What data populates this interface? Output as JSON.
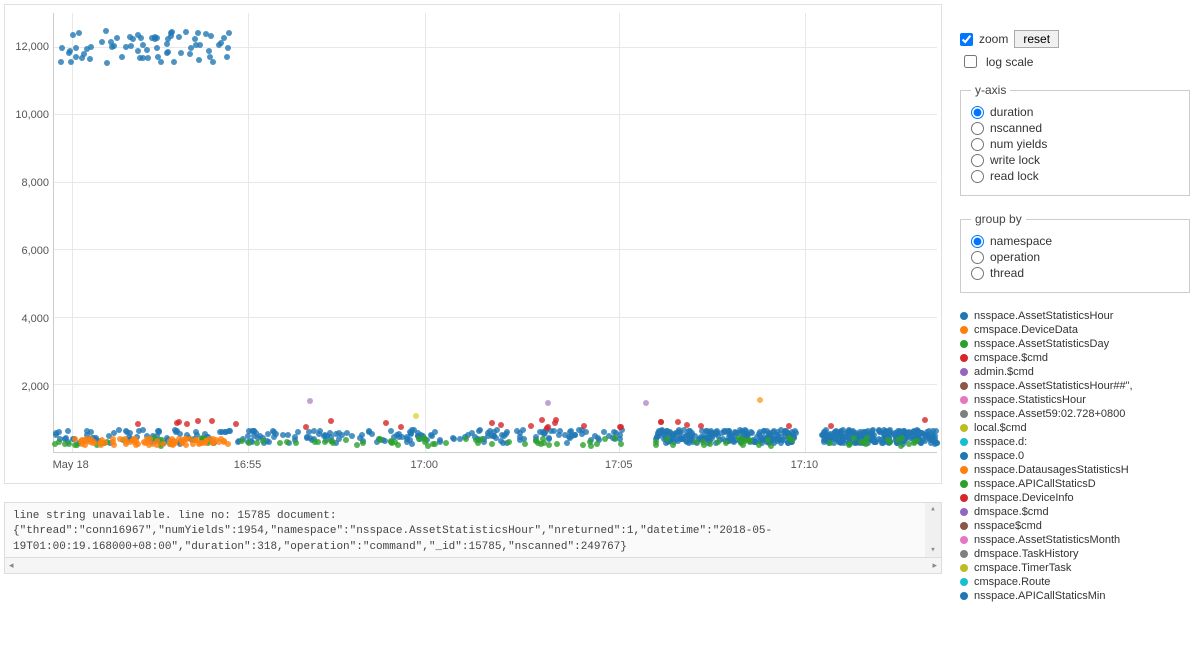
{
  "chart": {
    "type": "scatter",
    "background_color": "#ffffff",
    "grid_color": "#e8e8e8",
    "axis_color": "#cccccc",
    "ylim": [
      0,
      13000
    ],
    "ytick_step": 2000,
    "yticks": [
      2000,
      4000,
      6000,
      8000,
      10000,
      12000
    ],
    "ytick_labels": [
      "2,000",
      "4,000",
      "6,000",
      "8,000",
      "10,000",
      "12,000"
    ],
    "xticks": [
      0.02,
      0.22,
      0.42,
      0.64,
      0.85
    ],
    "xtick_labels": [
      "May 18",
      "16:55",
      "17:00",
      "17:05",
      "17:10"
    ],
    "marker_size": 6,
    "marker_opacity": 0.8,
    "clusters": {
      "high_band": {
        "color": "#1f77b4",
        "y_range": [
          11500,
          12500
        ],
        "x_range": [
          0.005,
          0.2
        ],
        "count": 70
      },
      "low_band_blue": {
        "color": "#1f77b4",
        "y_range": [
          250,
          650
        ],
        "segments": [
          [
            0.0,
            0.65
          ],
          [
            0.68,
            0.84
          ],
          [
            0.87,
            1.0
          ]
        ],
        "count": 700
      },
      "low_band_green": {
        "color": "#2ca02c",
        "y_range": [
          180,
          420
        ],
        "x_range": [
          0.0,
          1.0
        ],
        "count": 120
      },
      "low_band_orange": {
        "color": "#ff7f0e",
        "y_range": [
          200,
          400
        ],
        "x_range": [
          0.02,
          0.2
        ],
        "count": 80
      },
      "mid_red": {
        "color": "#d62728",
        "y_range": [
          700,
          960
        ],
        "x_range": [
          0.0,
          1.0
        ],
        "count": 30
      },
      "outliers_purple": {
        "color": "#b28cc7",
        "points": [
          [
            0.29,
            1500
          ],
          [
            0.56,
            1450
          ],
          [
            0.67,
            1440
          ]
        ]
      },
      "outliers_orange": {
        "color": "#ff9d2e",
        "points": [
          [
            0.8,
            1550
          ]
        ]
      },
      "outliers_yellow": {
        "color": "#dbd53a",
        "points": [
          [
            0.41,
            1080
          ]
        ]
      }
    }
  },
  "log": {
    "line1": "line string unavailable. line no: 15785 document:",
    "line2": "{\"thread\":\"conn16967\",\"numYields\":1954,\"namespace\":\"nsspace.AssetStatisticsHour\",\"nreturned\":1,\"datetime\":\"2018-05-19T01:00:19.168000+08:00\",\"duration\":318,\"operation\":\"command\",\"_id\":15785,\"nscanned\":249767}"
  },
  "controls": {
    "zoom_label": "zoom",
    "zoom_checked": true,
    "reset_label": "reset",
    "logscale_label": "log scale",
    "logscale_checked": false
  },
  "yaxis_fieldset": {
    "legend": "y-axis",
    "options": [
      {
        "label": "duration",
        "checked": true
      },
      {
        "label": "nscanned",
        "checked": false
      },
      {
        "label": "num yields",
        "checked": false
      },
      {
        "label": "write lock",
        "checked": false
      },
      {
        "label": "read lock",
        "checked": false
      }
    ]
  },
  "groupby_fieldset": {
    "legend": "group by",
    "options": [
      {
        "label": "namespace",
        "checked": true
      },
      {
        "label": "operation",
        "checked": false
      },
      {
        "label": "thread",
        "checked": false
      }
    ]
  },
  "legend": [
    {
      "color": "#1f77b4",
      "label": "nsspace.AssetStatisticsHour"
    },
    {
      "color": "#ff7f0e",
      "label": "cmspace.DeviceData"
    },
    {
      "color": "#2ca02c",
      "label": "nsspace.AssetStatisticsDay"
    },
    {
      "color": "#d62728",
      "label": "cmspace.$cmd"
    },
    {
      "color": "#9467bd",
      "label": "admin.$cmd"
    },
    {
      "color": "#8c564b",
      "label": "nsspace.AssetStatisticsHour##\","
    },
    {
      "color": "#e377c2",
      "label": "nsspace.StatisticsHour"
    },
    {
      "color": "#7f7f7f",
      "label": "nsspace.Asset59:02.728+0800"
    },
    {
      "color": "#bcbd22",
      "label": "local.$cmd"
    },
    {
      "color": "#17becf",
      "label": "nsspace.d:"
    },
    {
      "color": "#1f77b4",
      "label": "nsspace.0"
    },
    {
      "color": "#ff7f0e",
      "label": "nsspace.DatausagesStatisticsH"
    },
    {
      "color": "#2ca02c",
      "label": "nsspace.APICallStaticsD"
    },
    {
      "color": "#d62728",
      "label": "dmspace.DeviceInfo"
    },
    {
      "color": "#9467bd",
      "label": "dmspace.$cmd"
    },
    {
      "color": "#8c564b",
      "label": "nsspace$cmd"
    },
    {
      "color": "#e377c2",
      "label": "nsspace.AssetStatisticsMonth"
    },
    {
      "color": "#7f7f7f",
      "label": "dmspace.TaskHistory"
    },
    {
      "color": "#bcbd22",
      "label": "cmspace.TimerTask"
    },
    {
      "color": "#17becf",
      "label": "cmspace.Route"
    },
    {
      "color": "#1f77b4",
      "label": "nsspace.APICallStaticsMin"
    }
  ]
}
